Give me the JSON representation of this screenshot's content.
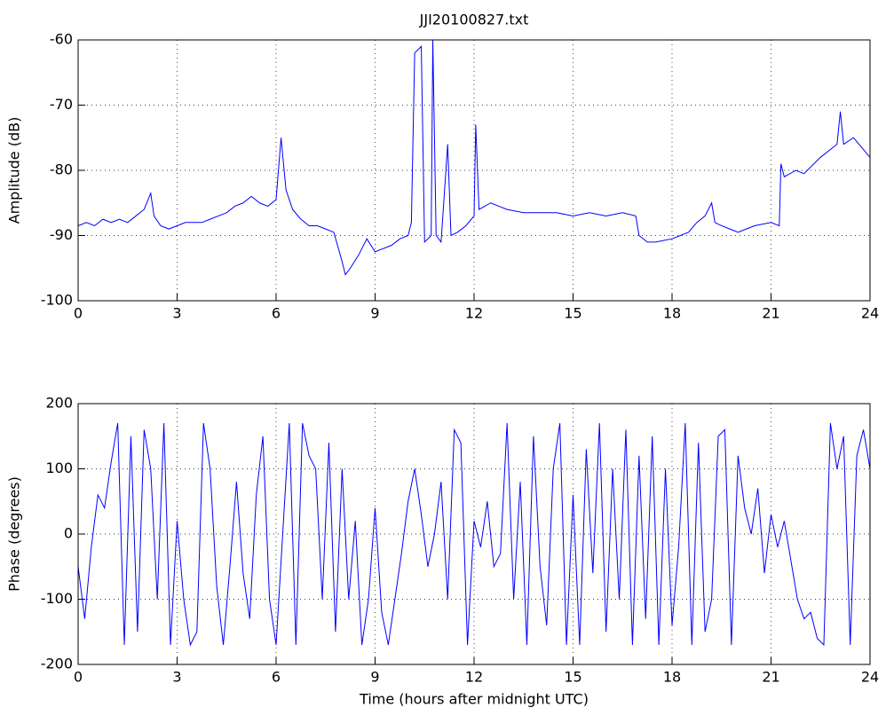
{
  "chart_data": [
    {
      "type": "line",
      "title": "JJI20100827.txt",
      "y_label": "Amplitude (dB)",
      "xlim": [
        0,
        24
      ],
      "xticks": [
        0,
        3,
        6,
        9,
        12,
        15,
        18,
        21,
        24
      ],
      "ylim": [
        -100,
        -60
      ],
      "yticks": [
        -100,
        -90,
        -80,
        -70,
        -60
      ],
      "grid": true,
      "series": [
        {
          "color": "#0000ff",
          "x": [
            0,
            0.25,
            0.5,
            0.75,
            1,
            1.25,
            1.5,
            1.75,
            2,
            2.2,
            2.3,
            2.5,
            2.75,
            3,
            3.25,
            3.5,
            3.75,
            4,
            4.25,
            4.5,
            4.75,
            5,
            5.25,
            5.5,
            5.75,
            6,
            6.15,
            6.3,
            6.5,
            6.75,
            7,
            7.25,
            7.5,
            7.75,
            8,
            8.1,
            8.25,
            8.5,
            8.75,
            9,
            9.25,
            9.5,
            9.75,
            10,
            10.1,
            10.2,
            10.4,
            10.5,
            10.7,
            10.75,
            10.85,
            11,
            11.2,
            11.3,
            11.5,
            11.75,
            12,
            12.05,
            12.15,
            12.5,
            12.75,
            13,
            13.5,
            14,
            14.5,
            15,
            15.5,
            16,
            16.5,
            16.9,
            17,
            17.25,
            17.5,
            18,
            18.5,
            18.75,
            19,
            19.2,
            19.3,
            19.5,
            19.75,
            20,
            20.25,
            20.5,
            21,
            21.25,
            21.3,
            21.4,
            21.75,
            22,
            22.5,
            23,
            23.1,
            23.2,
            23.5,
            24
          ],
          "values": [
            -88.5,
            -88,
            -88.5,
            -87.5,
            -88,
            -87.5,
            -88,
            -87,
            -86,
            -83.5,
            -87,
            -88.5,
            -89,
            -88.5,
            -88,
            -88,
            -88,
            -87.5,
            -87,
            -86.5,
            -85.5,
            -85,
            -84,
            -85,
            -85.5,
            -84.5,
            -75,
            -83,
            -86,
            -87.5,
            -88.5,
            -88.5,
            -89,
            -89.5,
            -94,
            -96,
            -95,
            -93,
            -90.5,
            -92.5,
            -92,
            -91.5,
            -90.5,
            -90,
            -88,
            -62,
            -61,
            -91,
            -90,
            -60,
            -90,
            -91,
            -76,
            -90,
            -89.5,
            -88.5,
            -87,
            -73,
            -86,
            -85,
            -85.5,
            -86,
            -86.5,
            -86.5,
            -86.5,
            -87,
            -86.5,
            -87,
            -86.5,
            -87,
            -90,
            -91,
            -91,
            -90.5,
            -89.5,
            -88,
            -87,
            -85,
            -88,
            -88.5,
            -89,
            -89.5,
            -89,
            -88.5,
            -88,
            -88.5,
            -79,
            -81,
            -80,
            -80.5,
            -78,
            -76,
            -71,
            -76,
            -75,
            -78
          ]
        }
      ]
    },
    {
      "type": "line",
      "x_label": "Time (hours after midnight UTC)",
      "y_label": "Phase (degrees)",
      "xlim": [
        0,
        24
      ],
      "xticks": [
        0,
        3,
        6,
        9,
        12,
        15,
        18,
        21,
        24
      ],
      "ylim": [
        -200,
        200
      ],
      "yticks": [
        -200,
        -100,
        0,
        100,
        200
      ],
      "grid": true,
      "series": [
        {
          "color": "#0000ff",
          "x": [
            0,
            0.2,
            0.4,
            0.6,
            0.8,
            1,
            1.2,
            1.4,
            1.6,
            1.8,
            2,
            2.2,
            2.4,
            2.6,
            2.8,
            3,
            3.2,
            3.4,
            3.6,
            3.8,
            4,
            4.2,
            4.4,
            4.6,
            4.8,
            5,
            5.2,
            5.4,
            5.6,
            5.8,
            6,
            6.2,
            6.4,
            6.6,
            6.8,
            7,
            7.2,
            7.4,
            7.6,
            7.8,
            8,
            8.2,
            8.4,
            8.6,
            8.8,
            9,
            9.2,
            9.4,
            9.6,
            9.8,
            10,
            10.2,
            10.4,
            10.6,
            10.8,
            11,
            11.2,
            11.4,
            11.6,
            11.8,
            12,
            12.2,
            12.4,
            12.6,
            12.8,
            13,
            13.2,
            13.4,
            13.6,
            13.8,
            14,
            14.2,
            14.4,
            14.6,
            14.8,
            15,
            15.2,
            15.4,
            15.6,
            15.8,
            16,
            16.2,
            16.4,
            16.6,
            16.8,
            17,
            17.2,
            17.4,
            17.6,
            17.8,
            18,
            18.2,
            18.4,
            18.6,
            18.8,
            19,
            19.2,
            19.4,
            19.6,
            19.8,
            20,
            20.2,
            20.4,
            20.6,
            20.8,
            21,
            21.2,
            21.4,
            21.6,
            21.8,
            22,
            22.2,
            22.4,
            22.6,
            22.8,
            23,
            23.2,
            23.4,
            23.6,
            23.8,
            24
          ],
          "values": [
            -50,
            -130,
            -20,
            60,
            40,
            110,
            170,
            -170,
            150,
            -150,
            160,
            100,
            -100,
            170,
            -170,
            20,
            -100,
            -170,
            -150,
            170,
            100,
            -80,
            -170,
            -50,
            80,
            -60,
            -130,
            60,
            150,
            -100,
            -170,
            0,
            170,
            -170,
            170,
            120,
            100,
            -100,
            140,
            -150,
            100,
            -100,
            20,
            -170,
            -100,
            40,
            -120,
            -170,
            -100,
            -30,
            50,
            100,
            30,
            -50,
            0,
            80,
            -100,
            160,
            140,
            -170,
            20,
            -20,
            50,
            -50,
            -30,
            170,
            -100,
            80,
            -170,
            150,
            -50,
            -140,
            100,
            170,
            -170,
            60,
            -170,
            130,
            -60,
            170,
            -150,
            100,
            -100,
            160,
            -170,
            120,
            -130,
            150,
            -170,
            100,
            -140,
            -20,
            170,
            -170,
            140,
            -150,
            -100,
            150,
            160,
            -170,
            120,
            40,
            0,
            70,
            -60,
            30,
            -20,
            20,
            -40,
            -100,
            -130,
            -120,
            -160,
            -170,
            170,
            100,
            150,
            -170,
            120,
            160,
            100
          ]
        }
      ]
    }
  ]
}
